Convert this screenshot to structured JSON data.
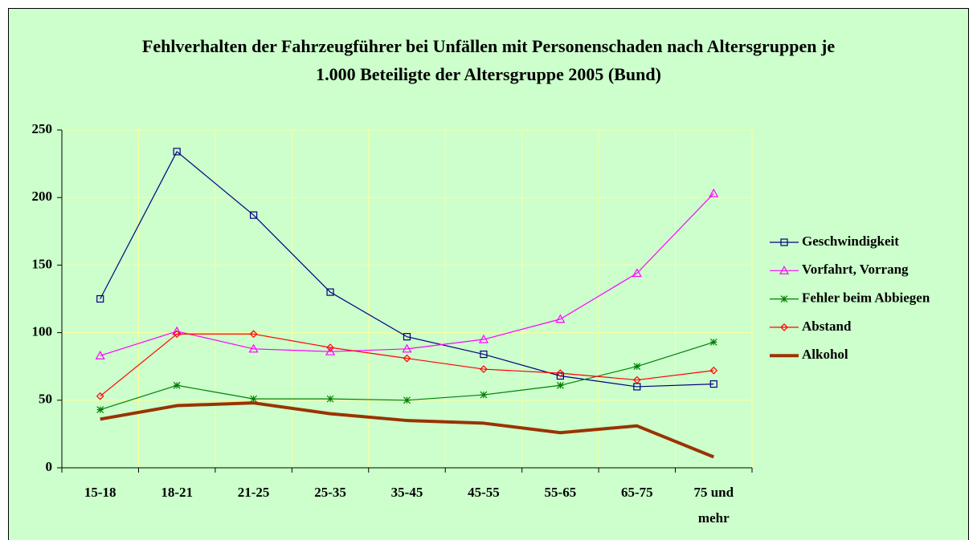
{
  "chart_data": {
    "type": "line",
    "title": "Fehlverhalten der Fahrzeugführer bei Unfällen mit Personenschaden nach Altersgruppen je 1.000 Beteiligte der Altersgruppe 2005 (Bund)",
    "categories": [
      "15-18",
      "18-21",
      "21-25",
      "25-35",
      "35-45",
      "45-55",
      "55-65",
      "65-75",
      "75 und mehr"
    ],
    "series": [
      {
        "name": "Geschwindigkeit",
        "color": "#000080",
        "marker": "square",
        "values": [
          125,
          234,
          187,
          130,
          97,
          84,
          68,
          60,
          62
        ]
      },
      {
        "name": "Vorfahrt, Vorrang",
        "color": "#ff00ff",
        "marker": "triangle",
        "values": [
          83,
          101,
          88,
          86,
          88,
          95,
          110,
          144,
          203
        ]
      },
      {
        "name": "Fehler beim Abbiegen",
        "color": "#008000",
        "marker": "asterisk",
        "values": [
          43,
          61,
          51,
          51,
          50,
          54,
          61,
          75,
          93
        ]
      },
      {
        "name": "Abstand",
        "color": "#ff0000",
        "marker": "diamond",
        "values": [
          53,
          99,
          99,
          89,
          81,
          73,
          70,
          65,
          72
        ]
      },
      {
        "name": "Alkohol",
        "color": "#993300",
        "values": [
          36,
          46,
          48,
          40,
          35,
          33,
          26,
          31,
          8
        ]
      }
    ],
    "ylim": [
      0,
      250
    ],
    "yticks": [
      0,
      50,
      100,
      150,
      200,
      250
    ],
    "grid": true,
    "legend": "right"
  }
}
